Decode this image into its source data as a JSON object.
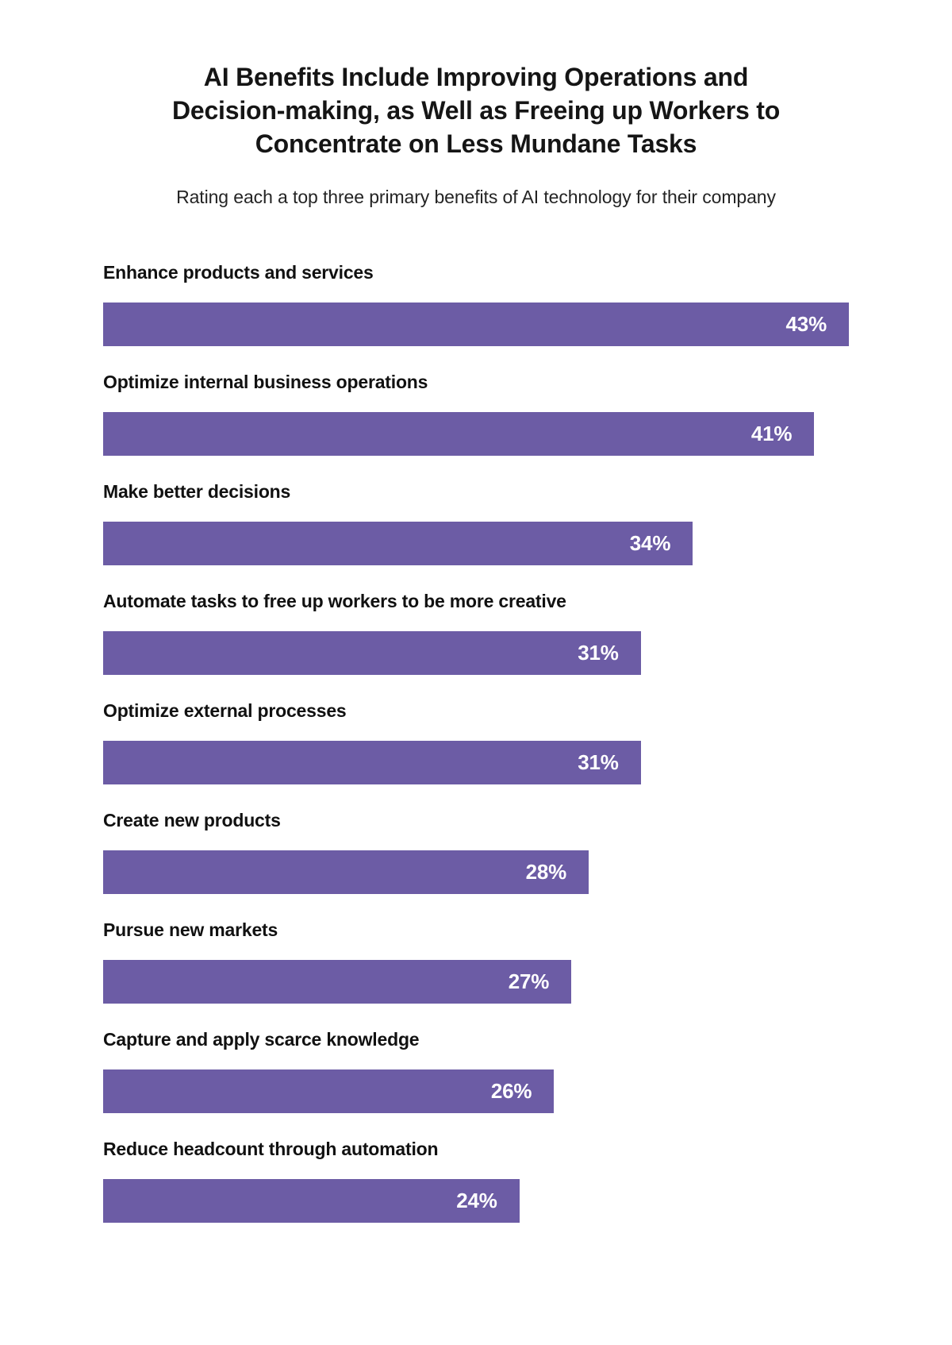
{
  "page": {
    "background_color": "#ffffff"
  },
  "header": {
    "title_lines": [
      "AI Benefits Include Improving Operations and",
      "Decision-making, as Well as Freeing up Workers to",
      "Concentrate on Less Mundane Tasks"
    ],
    "subtitle": "Rating each a top three primary benefits of AI technology for their company"
  },
  "chart_data": {
    "type": "bar",
    "orientation": "horizontal",
    "title": "AI Benefits Include Improving Operations and Decision-making, as Well as Freeing up Workers to Concentrate on Less Mundane Tasks",
    "subtitle": "Rating each a top three primary benefits of AI technology for their company",
    "categories": [
      "Enhance products and services",
      "Optimize internal business operations",
      "Make better decisions",
      "Automate tasks to free up workers to be more creative",
      "Optimize external processes",
      "Create new products",
      "Pursue new markets",
      "Capture and apply scarce knowledge",
      "Reduce headcount through automation"
    ],
    "values": [
      43,
      41,
      34,
      31,
      31,
      28,
      27,
      26,
      24
    ],
    "value_suffix": "%",
    "xlim": [
      0,
      43
    ],
    "bar_color": "#6C5CA5",
    "value_label_color": "#FFFFFF",
    "category_label_color": "#111111",
    "grid": false,
    "legend": false,
    "axis_ticks_visible": false
  }
}
